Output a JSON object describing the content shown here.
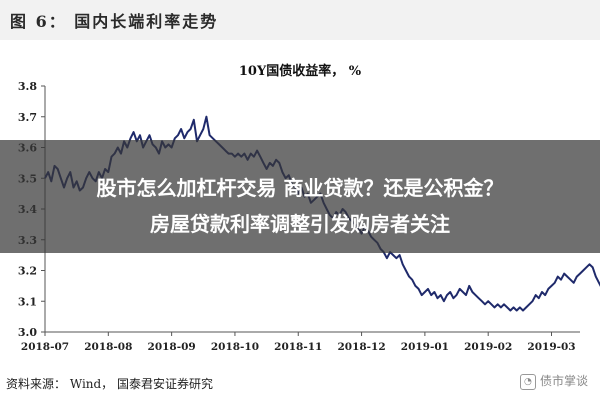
{
  "header": {
    "figure_title": "图 6： 国内长端利率走势"
  },
  "overlay": {
    "line1": "股市怎么加杠杆交易 商业贷款？还是公积金？",
    "line2": "房屋贷款利率调整引发购房者关注"
  },
  "source": "资料来源： Wind， 国泰君安证券研究",
  "watermark": "债市掌谈",
  "chart_data": {
    "type": "line",
    "title": "10Y国债收益率， %",
    "ylim": [
      3.0,
      3.8
    ],
    "y_ticks": [
      "3.0",
      "3.1",
      "3.2",
      "3.3",
      "3.4",
      "3.5",
      "3.6",
      "3.7",
      "3.8"
    ],
    "x_ticks": [
      "2018-07",
      "2018-08",
      "2018-09",
      "2018-10",
      "2018-11",
      "2018-12",
      "2019-01",
      "2019-02",
      "2019-03"
    ],
    "grid": false,
    "series": [
      {
        "color": "#1f2a6b",
        "x": [
          0.0,
          0.05,
          0.1,
          0.15,
          0.2,
          0.25,
          0.3,
          0.35,
          0.4,
          0.45,
          0.5,
          0.55,
          0.6,
          0.65,
          0.7,
          0.75,
          0.8,
          0.85,
          0.9,
          0.95,
          1.0,
          1.05,
          1.1,
          1.15,
          1.2,
          1.25,
          1.3,
          1.35,
          1.4,
          1.45,
          1.5,
          1.55,
          1.6,
          1.65,
          1.7,
          1.75,
          1.8,
          1.85,
          1.9,
          1.95,
          2.0,
          2.05,
          2.1,
          2.15,
          2.2,
          2.25,
          2.3,
          2.35,
          2.4,
          2.45,
          2.5,
          2.55,
          2.6,
          2.65,
          2.7,
          2.75,
          2.8,
          2.85,
          2.9,
          2.95,
          3.0,
          3.05,
          3.1,
          3.15,
          3.2,
          3.25,
          3.3,
          3.35,
          3.4,
          3.45,
          3.5,
          3.55,
          3.6,
          3.65,
          3.7,
          3.75,
          3.8,
          3.85,
          3.9,
          3.95,
          4.0,
          4.05,
          4.1,
          4.15,
          4.2,
          4.25,
          4.3,
          4.35,
          4.4,
          4.45,
          4.5,
          4.55,
          4.6,
          4.65,
          4.7,
          4.75,
          4.8,
          4.85,
          4.9,
          4.95,
          5.0,
          5.05,
          5.1,
          5.15,
          5.2,
          5.25,
          5.3,
          5.35,
          5.4,
          5.45,
          5.5,
          5.55,
          5.6,
          5.65,
          5.7,
          5.75,
          5.8,
          5.85,
          5.9,
          5.95,
          6.0,
          6.05,
          6.1,
          6.15,
          6.2,
          6.25,
          6.3,
          6.35,
          6.4,
          6.45,
          6.5,
          6.55,
          6.6,
          6.65,
          6.7,
          6.75,
          6.8,
          6.85,
          6.9,
          6.95,
          7.0,
          7.05,
          7.1,
          7.15,
          7.2,
          7.25,
          7.3,
          7.35,
          7.4,
          7.45,
          7.5,
          7.55,
          7.6,
          7.65,
          7.7,
          7.75,
          7.8,
          7.85,
          7.9,
          7.95,
          8.0,
          8.05,
          8.1,
          8.15,
          8.2,
          8.25,
          8.3,
          8.35,
          8.4,
          8.45,
          8.5,
          8.55,
          8.6,
          8.65,
          8.7,
          8.75,
          8.8,
          8.85,
          8.9,
          8.95,
          9.0,
          9.05,
          9.1,
          9.15,
          9.2,
          9.25,
          9.3,
          9.35,
          9.4,
          9.45,
          9.5,
          9.55,
          9.6
        ],
        "values": [
          3.5,
          3.52,
          3.49,
          3.54,
          3.53,
          3.5,
          3.47,
          3.5,
          3.52,
          3.47,
          3.49,
          3.46,
          3.47,
          3.5,
          3.52,
          3.5,
          3.49,
          3.52,
          3.5,
          3.53,
          3.52,
          3.57,
          3.58,
          3.6,
          3.58,
          3.62,
          3.6,
          3.63,
          3.65,
          3.62,
          3.64,
          3.6,
          3.62,
          3.64,
          3.61,
          3.6,
          3.58,
          3.62,
          3.6,
          3.61,
          3.6,
          3.63,
          3.64,
          3.66,
          3.63,
          3.65,
          3.66,
          3.69,
          3.62,
          3.64,
          3.66,
          3.7,
          3.64,
          3.63,
          3.62,
          3.61,
          3.6,
          3.59,
          3.58,
          3.58,
          3.57,
          3.58,
          3.57,
          3.58,
          3.56,
          3.58,
          3.57,
          3.59,
          3.57,
          3.55,
          3.53,
          3.55,
          3.54,
          3.56,
          3.55,
          3.52,
          3.5,
          3.51,
          3.48,
          3.47,
          3.45,
          3.47,
          3.44,
          3.45,
          3.42,
          3.43,
          3.44,
          3.45,
          3.42,
          3.4,
          3.38,
          3.37,
          3.39,
          3.38,
          3.4,
          3.39,
          3.37,
          3.36,
          3.35,
          3.34,
          3.32,
          3.34,
          3.33,
          3.31,
          3.3,
          3.29,
          3.27,
          3.26,
          3.24,
          3.26,
          3.25,
          3.24,
          3.25,
          3.22,
          3.2,
          3.18,
          3.17,
          3.15,
          3.14,
          3.12,
          3.13,
          3.14,
          3.12,
          3.13,
          3.11,
          3.12,
          3.1,
          3.12,
          3.13,
          3.11,
          3.12,
          3.14,
          3.13,
          3.12,
          3.15,
          3.13,
          3.12,
          3.11,
          3.1,
          3.09,
          3.1,
          3.09,
          3.08,
          3.09,
          3.08,
          3.09,
          3.08,
          3.07,
          3.08,
          3.07,
          3.08,
          3.07,
          3.08,
          3.09,
          3.1,
          3.12,
          3.11,
          3.13,
          3.12,
          3.14,
          3.15,
          3.16,
          3.18,
          3.17,
          3.19,
          3.18,
          3.17,
          3.16,
          3.18,
          3.19,
          3.2,
          3.21,
          3.22,
          3.21,
          3.18,
          3.16,
          3.14,
          3.15,
          3.13,
          3.14,
          3.13,
          3.14,
          3.13,
          3.14,
          3.15,
          3.14,
          3.13,
          3.14,
          3.14,
          3.13,
          3.14,
          3.14,
          3.14
        ]
      }
    ]
  }
}
